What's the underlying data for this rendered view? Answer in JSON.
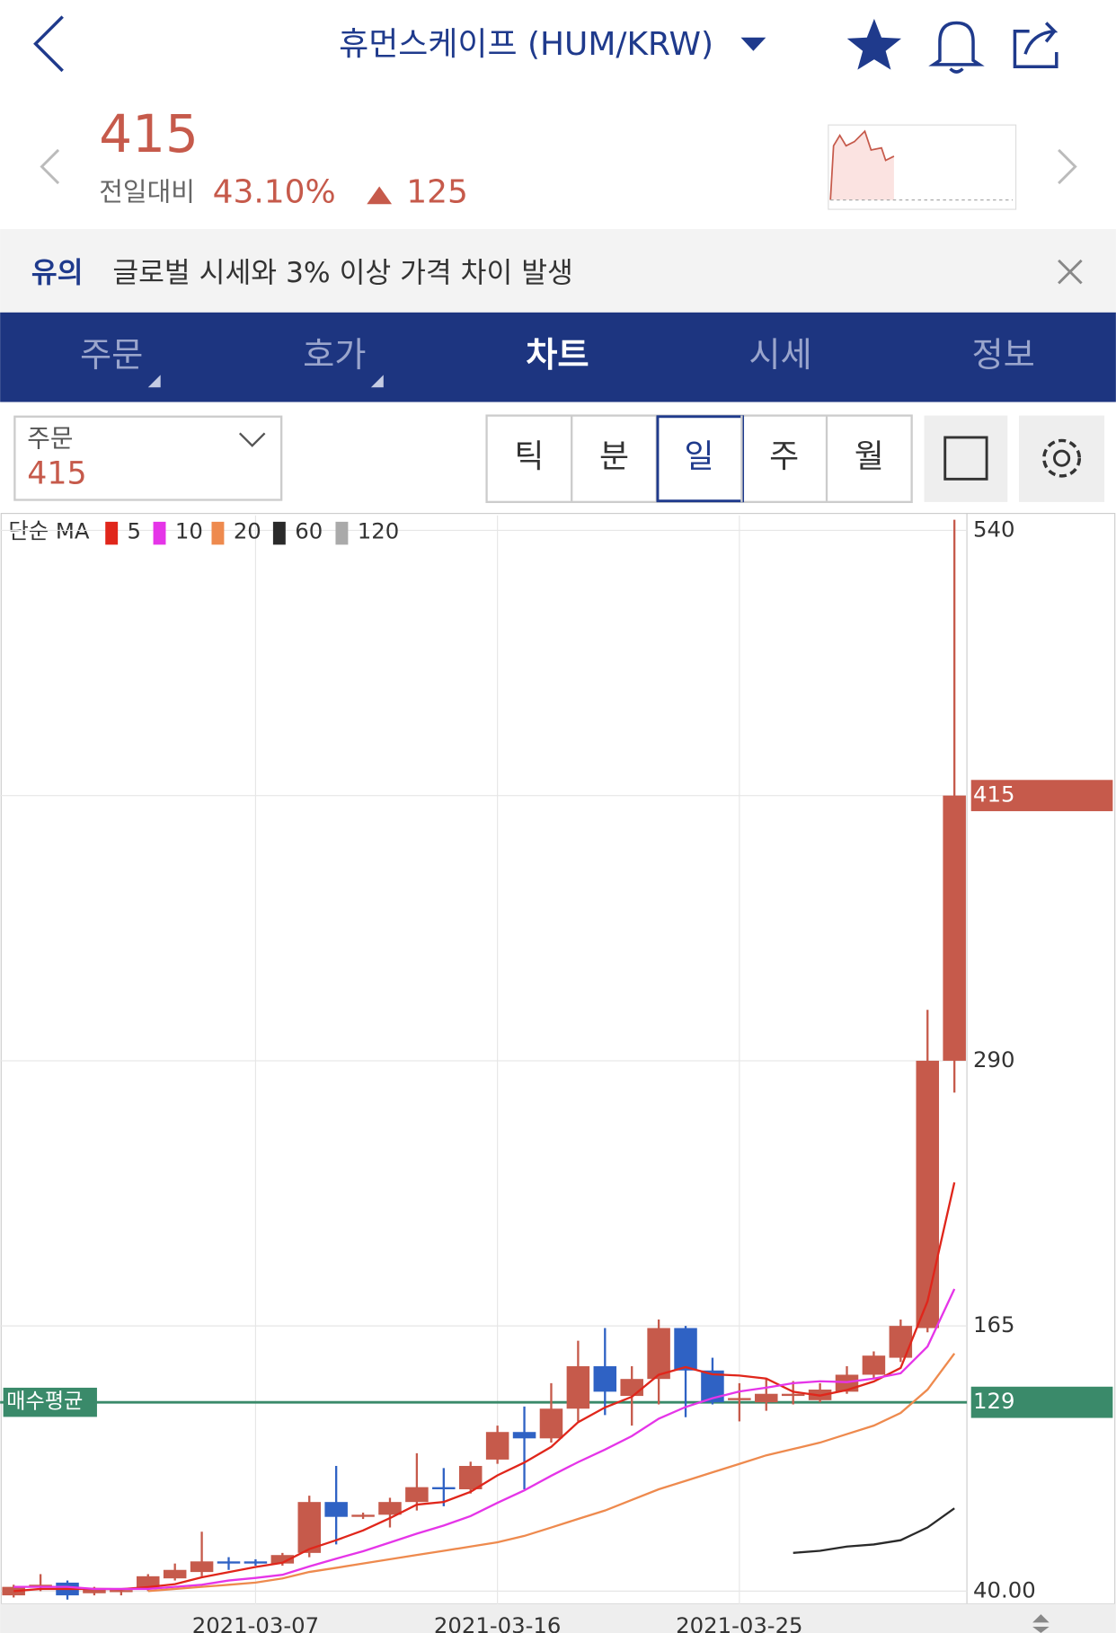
{
  "header": {
    "title": "휴먼스케이프 (HUM/KRW)"
  },
  "quote": {
    "price": "415",
    "change_label": "전일대비",
    "change_rate": "43.10%",
    "change_amount": "125"
  },
  "notice": {
    "tag": "유의",
    "text": "글로벌 시세와 3% 이상 가격 차이 발생"
  },
  "tabs": [
    "주문",
    "호가",
    "차트",
    "시세",
    "정보"
  ],
  "order": {
    "label": "주문",
    "value": "415"
  },
  "intervals": [
    "틱",
    "분",
    "일",
    "주",
    "월"
  ],
  "chart_data": {
    "type": "candlestick",
    "legend_title": "단순 MA",
    "categories": [
      null,
      null,
      null,
      null,
      null,
      null,
      null,
      null,
      null,
      "2021-03-07",
      null,
      null,
      null,
      null,
      null,
      null,
      null,
      null,
      "2021-03-16",
      null,
      null,
      null,
      null,
      null,
      null,
      null,
      null,
      "2021-03-25",
      null,
      null,
      null,
      null,
      null,
      null,
      null,
      null
    ],
    "open": [
      38,
      42,
      44,
      39,
      40,
      41,
      46,
      49,
      54,
      54,
      53,
      58,
      82,
      75,
      76,
      82,
      89,
      88,
      102,
      115,
      112,
      126,
      146,
      132,
      140,
      164,
      144,
      130,
      129,
      132,
      130,
      134,
      142,
      150,
      164,
      290
    ],
    "high": [
      43,
      48,
      45,
      42,
      41,
      48,
      53,
      68,
      56,
      55,
      58,
      85,
      99,
      77,
      84,
      105,
      98,
      101,
      118,
      127,
      138,
      158,
      164,
      146,
      168,
      165,
      150,
      138,
      140,
      139,
      138,
      146,
      153,
      168,
      314,
      545
    ],
    "low": [
      37,
      40,
      36,
      38,
      38,
      40,
      45,
      47,
      50,
      52,
      52,
      56,
      62,
      74,
      70,
      78,
      80,
      86,
      100,
      88,
      110,
      120,
      123,
      118,
      128,
      122,
      128,
      120,
      125,
      128,
      129,
      133,
      140,
      148,
      162,
      275
    ],
    "close": [
      42,
      43,
      38,
      41,
      40.5,
      47,
      50,
      54,
      53,
      53,
      57,
      82,
      75,
      76,
      82,
      89,
      88,
      99,
      115,
      112,
      126,
      146,
      134,
      140,
      164,
      144,
      129,
      131,
      133,
      133,
      135,
      142,
      151,
      165,
      290,
      415
    ],
    "up_color": "#c65a4b",
    "down_color": "#2f62c4",
    "series": [
      {
        "name": "5",
        "color": "#e0261b",
        "values": [
          40,
          41,
          41,
          41,
          40.9,
          41.9,
          43.3,
          46.5,
          48.9,
          51.4,
          53.4,
          59.8,
          64,
          68.6,
          74.4,
          80.8,
          82,
          86.8,
          94.6,
          100.6,
          108,
          119.6,
          126.6,
          131.6,
          142,
          145.6,
          142.2,
          141.6,
          140.2,
          134,
          132.2,
          134.8,
          138.8,
          145.2,
          176.6,
          232.6
        ]
      },
      {
        "name": "10",
        "color": "#e535e8",
        "values": [
          42,
          42,
          42,
          41,
          41,
          41,
          42,
          43,
          45,
          46.2,
          47.7,
          51.6,
          55.3,
          58.8,
          62.9,
          67.1,
          70.9,
          75.4,
          81.6,
          87.5,
          94.4,
          100.8,
          106.7,
          113.1,
          121.3,
          126.8,
          130.9,
          134.1,
          135.9,
          138,
          138.9,
          138.5,
          140.2,
          142.7,
          155.3,
          182.4
        ]
      },
      {
        "name": "20",
        "color": "#ee8a4e",
        "values": [
          null,
          null,
          null,
          null,
          null,
          40,
          41,
          42,
          43,
          44,
          46,
          49,
          51,
          53,
          55,
          57,
          59,
          61,
          63,
          66,
          70,
          74,
          78,
          83,
          88,
          92,
          96,
          100,
          104,
          107,
          110,
          114,
          118,
          124,
          135,
          152
        ]
      },
      {
        "name": "60",
        "color": "#2a2a2a",
        "values": [
          null,
          null,
          null,
          null,
          null,
          null,
          null,
          null,
          null,
          null,
          null,
          null,
          null,
          null,
          null,
          null,
          null,
          null,
          null,
          null,
          null,
          null,
          null,
          null,
          null,
          null,
          null,
          null,
          null,
          58,
          59,
          61,
          62,
          64,
          70,
          79
        ]
      },
      {
        "name": "120",
        "color": "#aaaaaa",
        "values": [
          null,
          null,
          null,
          null,
          null,
          null,
          null,
          null,
          null,
          null,
          null,
          null,
          null,
          null,
          null,
          null,
          null,
          null,
          null,
          null,
          null,
          null,
          null,
          null,
          null,
          null,
          null,
          null,
          null,
          null,
          null,
          null,
          null,
          null,
          null,
          null
        ]
      }
    ],
    "ylim": [
      34,
      547
    ],
    "yticks": [
      540,
      415,
      290,
      165,
      {
        "value": 40,
        "label": "40.00"
      }
    ],
    "grid": true,
    "current_price": 415,
    "current_price_color": "#c65a4b",
    "average_price": 129,
    "average_label": "매수평균",
    "average_color": "#3a8a6a"
  }
}
